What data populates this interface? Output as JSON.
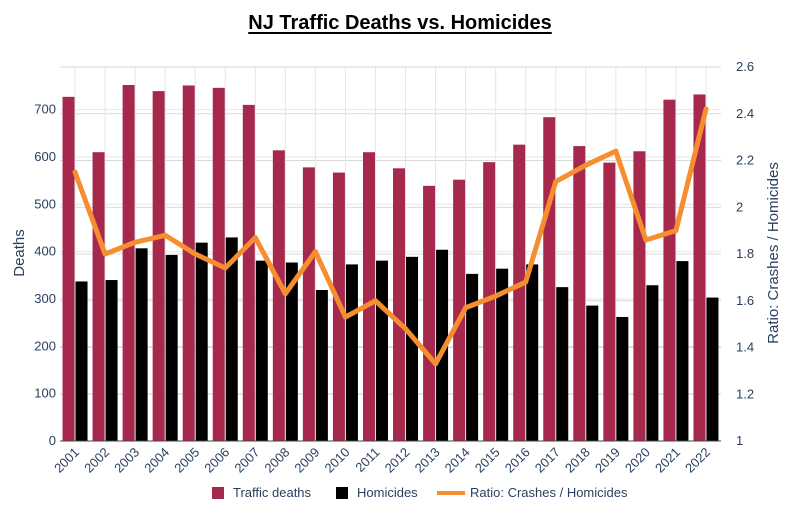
{
  "chart_data": {
    "type": "bar",
    "title": "NJ Traffic Deaths vs. Homicides",
    "categories": [
      "2001",
      "2002",
      "2003",
      "2004",
      "2005",
      "2006",
      "2007",
      "2008",
      "2009",
      "2010",
      "2011",
      "2012",
      "2013",
      "2014",
      "2015",
      "2016",
      "2017",
      "2018",
      "2019",
      "2020",
      "2021",
      "2022"
    ],
    "series": [
      {
        "name": "Traffic deaths",
        "type": "bar",
        "axis": "left",
        "color": "#a6294d",
        "values": [
          727,
          610,
          752,
          739,
          751,
          746,
          710,
          614,
          578,
          567,
          610,
          576,
          539,
          552,
          589,
          626,
          684,
          623,
          588,
          612,
          721,
          732
        ]
      },
      {
        "name": "Homicides",
        "type": "bar",
        "axis": "left",
        "color": "#000000",
        "values": [
          337,
          340,
          407,
          393,
          419,
          430,
          381,
          377,
          319,
          373,
          381,
          389,
          404,
          353,
          364,
          373,
          325,
          286,
          262,
          329,
          380,
          303
        ]
      },
      {
        "name": "Ratio: Crashes / Homicides",
        "type": "line",
        "axis": "right",
        "color": "#f68e2f",
        "values": [
          2.15,
          1.8,
          1.85,
          1.88,
          1.8,
          1.74,
          1.87,
          1.63,
          1.81,
          1.53,
          1.6,
          1.48,
          1.33,
          1.57,
          1.62,
          1.68,
          2.11,
          2.18,
          2.24,
          1.86,
          1.9,
          2.42
        ]
      }
    ],
    "ylabel": "Deaths",
    "ylim": [
      0,
      790
    ],
    "yticks": [
      0,
      100,
      200,
      300,
      400,
      500,
      600,
      700
    ],
    "y2label": "Ratio: Crashes / Homicides",
    "y2lim": [
      1,
      2.6
    ],
    "y2ticks": [
      "1",
      "1.2",
      "1.4",
      "1.6",
      "1.8",
      "2",
      "2.2",
      "2.4",
      "2.6"
    ],
    "grid": true,
    "legend": "bottom-center"
  }
}
